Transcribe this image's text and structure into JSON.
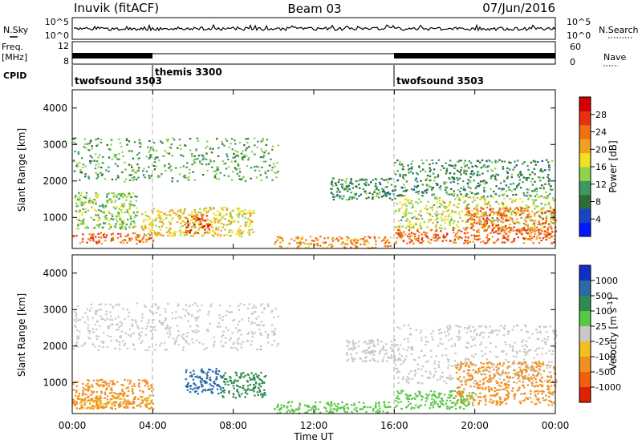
{
  "header": {
    "station": "Inuvik (fitACF)",
    "beam": "Beam 03",
    "date": "07/Jun/2016"
  },
  "summary": {
    "nsky_label": "N.Sky",
    "nsearch_label": "N.Search",
    "freq_label_1": "Freq.",
    "freq_label_2": "[MHz]",
    "nave_label": "Nave",
    "cpid_label": "CPID",
    "left_ticks_top": [
      "10^5",
      "10^0"
    ],
    "right_ticks_top": [
      "10^5",
      "10^0"
    ],
    "freq_ticks": [
      "12",
      "8"
    ],
    "nave_ticks": [
      "60",
      "0"
    ],
    "cpid_segments": [
      {
        "label": "twofsound 3503",
        "start": 0,
        "end": 4
      },
      {
        "label": "themis 3300",
        "start": 4,
        "end": 16
      },
      {
        "label": "twofsound 3503",
        "start": 16,
        "end": 24
      }
    ]
  },
  "xaxis": {
    "label": "Time UT",
    "ticks": [
      "00:00",
      "04:00",
      "08:00",
      "12:00",
      "16:00",
      "20:00",
      "00:00"
    ],
    "tick_hours": [
      0,
      4,
      8,
      12,
      16,
      20,
      24
    ],
    "range_hours": [
      0,
      24
    ],
    "mode_changes_hours": [
      4,
      16
    ]
  },
  "chart_data": [
    {
      "type": "heatmap",
      "panel": "power",
      "ylabel": "Slant Range [km]",
      "yticks": [
        1000,
        2000,
        3000,
        4000
      ],
      "ylim": [
        150,
        4500
      ],
      "colorbar": {
        "label": "Power [dB]",
        "ticks": [
          "28",
          "24",
          "20",
          "16",
          "12",
          "8",
          "4"
        ],
        "range": [
          0,
          32
        ],
        "colors": [
          "#0018ff",
          "#1a44c8",
          "#2e6d3a",
          "#3a9a60",
          "#8fd34a",
          "#f0e020",
          "#f0a020",
          "#f07010",
          "#e83010",
          "#d40000"
        ]
      },
      "regions": [
        {
          "t": [
            0.0,
            4.0
          ],
          "r": [
            300,
            600
          ],
          "value": 24
        },
        {
          "t": [
            0.0,
            10.2
          ],
          "r": [
            2000,
            3200
          ],
          "value": 12
        },
        {
          "t": [
            0.1,
            3.2
          ],
          "r": [
            700,
            1700
          ],
          "value": 14
        },
        {
          "t": [
            3.4,
            9.0
          ],
          "r": [
            500,
            1300
          ],
          "value": 18
        },
        {
          "t": [
            5.5,
            6.8
          ],
          "r": [
            600,
            1100
          ],
          "value": 26
        },
        {
          "t": [
            10.0,
            15.8
          ],
          "r": [
            180,
            500
          ],
          "value": 22
        },
        {
          "t": [
            12.8,
            16.0
          ],
          "r": [
            1500,
            2100
          ],
          "value": 10
        },
        {
          "t": [
            16.0,
            24.0
          ],
          "r": [
            300,
            700
          ],
          "value": 24
        },
        {
          "t": [
            16.0,
            24.0
          ],
          "r": [
            700,
            1600
          ],
          "value": 16
        },
        {
          "t": [
            19.5,
            24.0
          ],
          "r": [
            600,
            1300
          ],
          "value": 24
        },
        {
          "t": [
            16.0,
            23.8
          ],
          "r": [
            1600,
            2600
          ],
          "value": 10
        }
      ]
    },
    {
      "type": "heatmap",
      "panel": "velocity",
      "ylabel": "Slant Range [km]",
      "yticks": [
        1000,
        2000,
        3000,
        4000
      ],
      "ylim": [
        150,
        4500
      ],
      "colorbar": {
        "label": "Velocity [m s^-1]",
        "ticks": [
          "1000",
          "500",
          "100",
          "25",
          "-25",
          "-100",
          "-500",
          "-1000"
        ],
        "levels": [
          1000,
          500,
          100,
          25,
          -25,
          -100,
          -500,
          -1000
        ],
        "colors": [
          "#1030c0",
          "#2a6aa8",
          "#2e8a50",
          "#56c842",
          "#c8c8c4",
          "#f0c020",
          "#f09020",
          "#f06010",
          "#e02000"
        ]
      },
      "regions": [
        {
          "t": [
            0.0,
            10.2
          ],
          "r": [
            1900,
            3200
          ],
          "value": 0
        },
        {
          "t": [
            0.0,
            4.0
          ],
          "r": [
            300,
            1100
          ],
          "value": -300
        },
        {
          "t": [
            0.0,
            4.0
          ],
          "r": [
            300,
            600
          ],
          "value": -100
        },
        {
          "t": [
            5.6,
            7.4
          ],
          "r": [
            700,
            1400
          ],
          "value": 700
        },
        {
          "t": [
            7.4,
            9.6
          ],
          "r": [
            600,
            1300
          ],
          "value": 200
        },
        {
          "t": [
            10.0,
            15.8
          ],
          "r": [
            180,
            500
          ],
          "value": 60
        },
        {
          "t": [
            13.6,
            16.0
          ],
          "r": [
            1600,
            2200
          ],
          "value": 0
        },
        {
          "t": [
            16.0,
            20.0
          ],
          "r": [
            300,
            800
          ],
          "value": 60
        },
        {
          "t": [
            16.0,
            24.0
          ],
          "r": [
            1000,
            2600
          ],
          "value": 0
        },
        {
          "t": [
            19.0,
            24.0
          ],
          "r": [
            400,
            1600
          ],
          "value": -300
        }
      ]
    }
  ]
}
